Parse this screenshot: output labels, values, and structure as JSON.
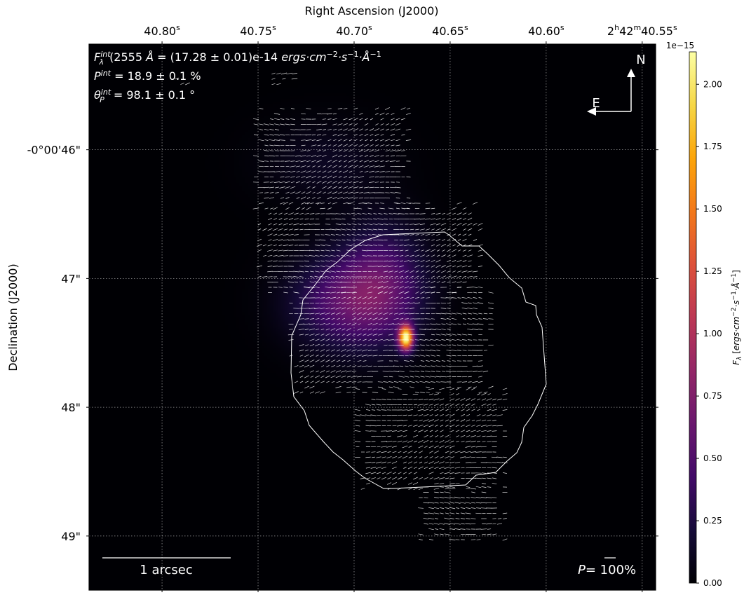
{
  "chart_data": {
    "type": "heatmap",
    "title": "",
    "xlabel": "Right Ascension (J2000)",
    "ylabel": "Declination (J2000)",
    "x_ticks": [
      {
        "label": "40.80",
        "sup": "s",
        "ra_s": 40.8
      },
      {
        "label": "40.75",
        "sup": "s",
        "ra_s": 40.75
      },
      {
        "label": "40.70",
        "sup": "s",
        "ra_s": 40.7
      },
      {
        "label": "40.65",
        "sup": "s",
        "ra_s": 40.65
      },
      {
        "label": "40.60",
        "sup": "s",
        "ra_s": 40.6
      },
      {
        "label": "2h42m40.55",
        "h": "2",
        "m": "42",
        "s": "40.55",
        "ra_s": 40.55
      }
    ],
    "y_ticks": [
      {
        "label": "-0°00'46\"",
        "dec_arcsec": 46.0
      },
      {
        "label": "47\"",
        "dec_arcsec": 47.0
      },
      {
        "label": "48\"",
        "dec_arcsec": 48.0
      },
      {
        "label": "49\"",
        "dec_arcsec": 49.0
      }
    ],
    "x_range_ra_s": [
      40.838,
      40.543
    ],
    "y_range_dec_arcsec": [
      45.18,
      49.42
    ],
    "colorbar": {
      "colormap": "inferno",
      "label": "F_λ [ergs·cm⁻²·s⁻¹·Å⁻¹]",
      "offset_label": "1e−15",
      "ticks": [
        0.0,
        0.25,
        0.5,
        0.75,
        1.0,
        1.25,
        1.5,
        1.75,
        2.0
      ],
      "range": [
        0.0,
        2.13
      ]
    },
    "annotations": {
      "flux": "F^int_λ(2555 Å) = (17.28 ± 0.01)e-14 ergs·cm⁻²·s⁻¹·Å⁻¹",
      "flux_text": " = (17.28 ± 0.01)e-14 ",
      "polarization": "P^int = 18.9 ± 0.1 %",
      "angle": "θ^int_P = 98.1 ± 0.1 °",
      "compass_north": "N",
      "compass_east": "E",
      "scale_bar": "1 arcsec",
      "vector_scale": "P= 100%"
    },
    "emission_peaks": [
      {
        "ra_s": 40.673,
        "dec_arcsec": 47.46,
        "flux": 2.13
      },
      {
        "ra_s": 40.702,
        "dec_arcsec": 47.18,
        "flux": 0.55
      },
      {
        "ra_s": 40.685,
        "dec_arcsec": 47.0,
        "flux": 0.4
      },
      {
        "ra_s": 40.715,
        "dec_arcsec": 46.1,
        "flux": 0.12
      }
    ],
    "polarization_angle_range_deg": [
      70,
      130
    ],
    "grid": true
  },
  "colors": {
    "background": "#000004",
    "contour": "#ffffff",
    "vectors": "#ffffff",
    "grid": "#bbbbbb"
  }
}
